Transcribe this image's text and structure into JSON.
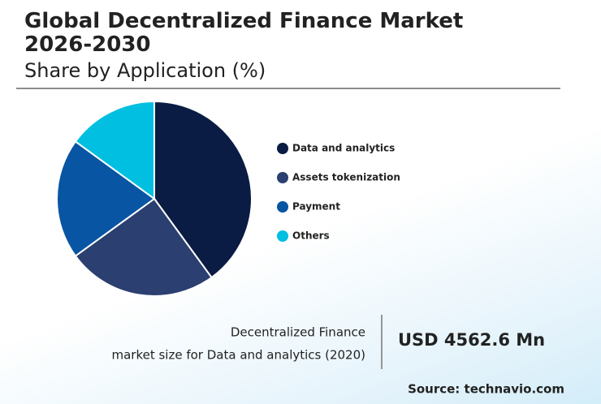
{
  "chart_data": {
    "type": "pie",
    "title": "Global Decentralized Finance Market 2026-2030",
    "subtitle": "Share by Application (%)",
    "categories": [
      "Data and analytics",
      "Assets tokenization",
      "Payment",
      "Others"
    ],
    "values": [
      40,
      25,
      20,
      15
    ],
    "colors": [
      "#0a1c44",
      "#2b3f70",
      "#0855a3",
      "#00bfe0"
    ],
    "annotation": {
      "label_lines": [
        "Decentralized Finance",
        "market size for Data and analytics (2020)"
      ],
      "value": "USD 4562.6 Mn"
    },
    "source": "Source: technavio.com"
  }
}
